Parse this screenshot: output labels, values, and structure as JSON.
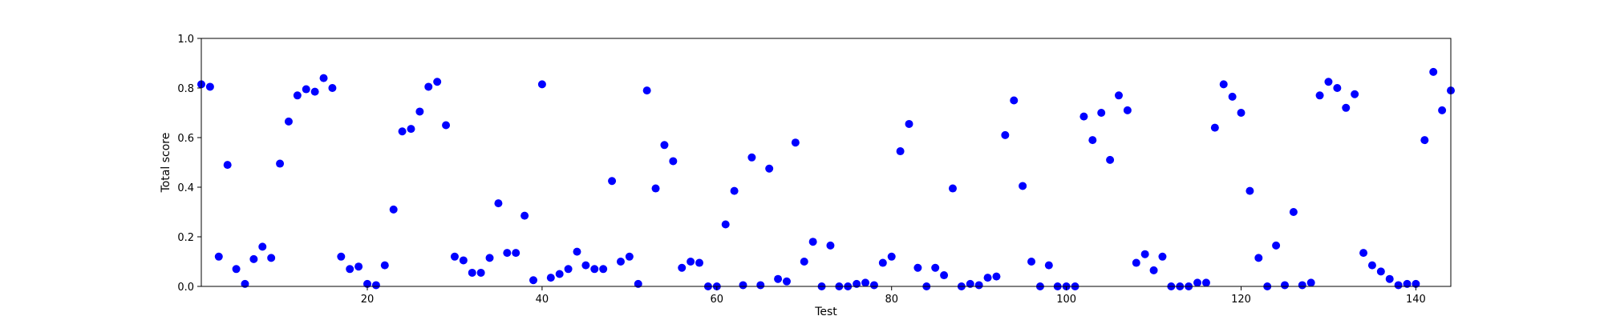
{
  "chart_data": {
    "type": "scatter",
    "xlabel": "Test",
    "ylabel": "Total score",
    "xlim": [
      1,
      144
    ],
    "ylim": [
      0,
      1.0
    ],
    "x_ticks": [
      20,
      40,
      60,
      80,
      100,
      120,
      140
    ],
    "x_tick_labels": [
      "20",
      "40",
      "60",
      "80",
      "100",
      "120",
      "140"
    ],
    "y_ticks": [
      0.0,
      0.2,
      0.4,
      0.6,
      0.8,
      1.0
    ],
    "y_tick_labels": [
      "0.0",
      "0.2",
      "0.4",
      "0.6",
      "0.8",
      "1.0"
    ],
    "grid": false,
    "marker_color": "#0000ff",
    "series": [
      {
        "points": [
          [
            1,
            0.815
          ],
          [
            2,
            0.805
          ],
          [
            3,
            0.12
          ],
          [
            4,
            0.49
          ],
          [
            5,
            0.07
          ],
          [
            6,
            0.01
          ],
          [
            7,
            0.11
          ],
          [
            8,
            0.16
          ],
          [
            9,
            0.115
          ],
          [
            10,
            0.495
          ],
          [
            11,
            0.665
          ],
          [
            12,
            0.77
          ],
          [
            13,
            0.795
          ],
          [
            14,
            0.785
          ],
          [
            15,
            0.84
          ],
          [
            16,
            0.8
          ],
          [
            17,
            0.12
          ],
          [
            18,
            0.07
          ],
          [
            19,
            0.08
          ],
          [
            20,
            0.01
          ],
          [
            21,
            0.005
          ],
          [
            22,
            0.085
          ],
          [
            23,
            0.31
          ],
          [
            24,
            0.625
          ],
          [
            25,
            0.635
          ],
          [
            26,
            0.705
          ],
          [
            27,
            0.805
          ],
          [
            28,
            0.825
          ],
          [
            29,
            0.65
          ],
          [
            30,
            0.12
          ],
          [
            31,
            0.105
          ],
          [
            32,
            0.055
          ],
          [
            33,
            0.055
          ],
          [
            34,
            0.115
          ],
          [
            35,
            0.335
          ],
          [
            36,
            0.135
          ],
          [
            37,
            0.135
          ],
          [
            38,
            0.285
          ],
          [
            39,
            0.025
          ],
          [
            40,
            0.815
          ],
          [
            41,
            0.035
          ],
          [
            42,
            0.05
          ],
          [
            43,
            0.07
          ],
          [
            44,
            0.14
          ],
          [
            45,
            0.085
          ],
          [
            46,
            0.07
          ],
          [
            47,
            0.07
          ],
          [
            48,
            0.425
          ],
          [
            49,
            0.1
          ],
          [
            50,
            0.12
          ],
          [
            51,
            0.01
          ],
          [
            52,
            0.79
          ],
          [
            53,
            0.395
          ],
          [
            54,
            0.57
          ],
          [
            55,
            0.505
          ],
          [
            56,
            0.075
          ],
          [
            57,
            0.1
          ],
          [
            58,
            0.095
          ],
          [
            59,
            0.0
          ],
          [
            60,
            0.0
          ],
          [
            61,
            0.25
          ],
          [
            62,
            0.385
          ],
          [
            63,
            0.005
          ],
          [
            64,
            0.52
          ],
          [
            65,
            0.005
          ],
          [
            66,
            0.475
          ],
          [
            67,
            0.03
          ],
          [
            68,
            0.02
          ],
          [
            69,
            0.58
          ],
          [
            70,
            0.1
          ],
          [
            71,
            0.18
          ],
          [
            72,
            0.0
          ],
          [
            73,
            0.165
          ],
          [
            74,
            0.0
          ],
          [
            75,
            0.0
          ],
          [
            76,
            0.01
          ],
          [
            77,
            0.015
          ],
          [
            78,
            0.005
          ],
          [
            79,
            0.095
          ],
          [
            80,
            0.12
          ],
          [
            81,
            0.545
          ],
          [
            82,
            0.655
          ],
          [
            83,
            0.075
          ],
          [
            84,
            0.0
          ],
          [
            85,
            0.075
          ],
          [
            86,
            0.045
          ],
          [
            87,
            0.395
          ],
          [
            88,
            0.0
          ],
          [
            89,
            0.01
          ],
          [
            90,
            0.005
          ],
          [
            91,
            0.035
          ],
          [
            92,
            0.04
          ],
          [
            93,
            0.61
          ],
          [
            94,
            0.75
          ],
          [
            95,
            0.405
          ],
          [
            96,
            0.1
          ],
          [
            97,
            0.0
          ],
          [
            98,
            0.085
          ],
          [
            99,
            0.0
          ],
          [
            100,
            0.0
          ],
          [
            101,
            0.0
          ],
          [
            102,
            0.685
          ],
          [
            103,
            0.59
          ],
          [
            104,
            0.7
          ],
          [
            105,
            0.51
          ],
          [
            106,
            0.77
          ],
          [
            107,
            0.71
          ],
          [
            108,
            0.095
          ],
          [
            109,
            0.13
          ],
          [
            110,
            0.065
          ],
          [
            111,
            0.12
          ],
          [
            112,
            0.0
          ],
          [
            113,
            0.0
          ],
          [
            114,
            0.0
          ],
          [
            115,
            0.015
          ],
          [
            116,
            0.015
          ],
          [
            117,
            0.64
          ],
          [
            118,
            0.815
          ],
          [
            119,
            0.765
          ],
          [
            120,
            0.7
          ],
          [
            121,
            0.385
          ],
          [
            122,
            0.115
          ],
          [
            123,
            0.0
          ],
          [
            124,
            0.165
          ],
          [
            125,
            0.005
          ],
          [
            126,
            0.3
          ],
          [
            127,
            0.005
          ],
          [
            128,
            0.015
          ],
          [
            129,
            0.77
          ],
          [
            130,
            0.825
          ],
          [
            131,
            0.8
          ],
          [
            132,
            0.72
          ],
          [
            133,
            0.775
          ],
          [
            134,
            0.135
          ],
          [
            135,
            0.085
          ],
          [
            136,
            0.06
          ],
          [
            137,
            0.03
          ],
          [
            138,
            0.005
          ],
          [
            139,
            0.01
          ],
          [
            140,
            0.01
          ],
          [
            141,
            0.59
          ],
          [
            142,
            0.865
          ],
          [
            143,
            0.71
          ],
          [
            144,
            0.79
          ]
        ]
      }
    ]
  }
}
